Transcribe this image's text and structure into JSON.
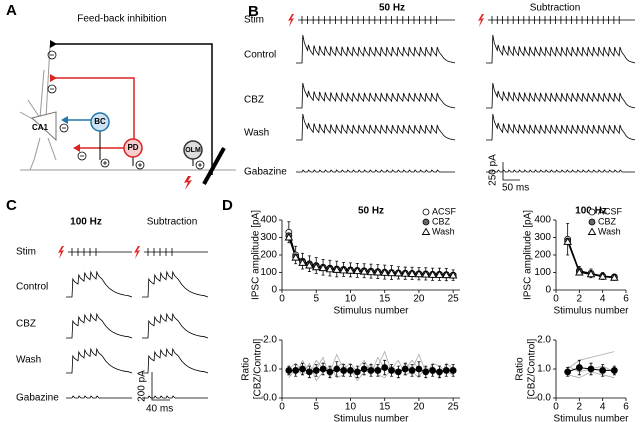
{
  "panel_a": {
    "label": "A",
    "title": "Feed-back inhibition",
    "cells": [
      "CA1",
      "BC",
      "PD",
      "OLM"
    ]
  },
  "panel_b": {
    "label": "B",
    "columns": [
      "50 Hz",
      "Subtraction"
    ],
    "rows": [
      "Stim",
      "Control",
      "CBZ",
      "Wash",
      "Gabazine"
    ],
    "scale_y": "250 pA",
    "scale_x": "50 ms"
  },
  "panel_c": {
    "label": "C",
    "columns": [
      "100 Hz",
      "Subtraction"
    ],
    "rows": [
      "Stim",
      "Control",
      "CBZ",
      "Wash",
      "Gabazine"
    ],
    "scale_y": "200 pA",
    "scale_x": "40 ms"
  },
  "panel_d": {
    "label": "D"
  },
  "chart_data": [
    {
      "type": "line",
      "title": "50 Hz",
      "xlabel": "Stimulus number",
      "ylabel": "IPSC amplitude [pA]",
      "x": [
        1,
        2,
        3,
        4,
        5,
        6,
        7,
        8,
        9,
        10,
        11,
        12,
        13,
        14,
        15,
        16,
        17,
        18,
        19,
        20,
        21,
        22,
        23,
        24,
        25
      ],
      "xlim": [
        0,
        26
      ],
      "xticks": [
        0,
        5,
        10,
        15,
        20,
        25
      ],
      "ylim": [
        0,
        400
      ],
      "yticks": [
        0,
        100,
        200,
        300,
        400
      ],
      "legend": "upper right",
      "series": [
        {
          "name": "ACSF",
          "marker": "circle-open",
          "color": "#000000",
          "values": [
            330,
            200,
            165,
            150,
            140,
            130,
            125,
            120,
            118,
            115,
            112,
            110,
            108,
            105,
            102,
            100,
            98,
            96,
            95,
            93,
            92,
            90,
            90,
            88,
            85
          ],
          "errors": [
            60,
            50,
            45,
            45,
            45,
            45,
            45,
            45,
            40,
            40,
            40,
            40,
            40,
            40,
            40,
            40,
            35,
            35,
            35,
            35,
            35,
            35,
            35,
            35,
            30
          ]
        },
        {
          "name": "CBZ",
          "marker": "circle-filled",
          "color": "#666666",
          "values": [
            310,
            190,
            160,
            145,
            135,
            128,
            122,
            118,
            115,
            112,
            110,
            108,
            105,
            103,
            100,
            98,
            96,
            95,
            93,
            92,
            90,
            88,
            88,
            86,
            84
          ]
        },
        {
          "name": "Wash",
          "marker": "triangle-open",
          "color": "#000000",
          "values": [
            300,
            185,
            155,
            140,
            130,
            125,
            118,
            115,
            112,
            110,
            108,
            105,
            102,
            100,
            98,
            96,
            95,
            93,
            92,
            90,
            88,
            87,
            86,
            85,
            83
          ]
        }
      ]
    },
    {
      "type": "line",
      "title": "100 Hz",
      "xlabel": "Stimulus number",
      "ylabel": "IPSC amplitude [pA]",
      "x": [
        1,
        2,
        3,
        4,
        5
      ],
      "xlim": [
        0,
        6
      ],
      "xticks": [
        0,
        2,
        4,
        6
      ],
      "ylim": [
        0,
        400
      ],
      "yticks": [
        0,
        100,
        200,
        300,
        400
      ],
      "legend": "upper right",
      "series": [
        {
          "name": "ACSF",
          "marker": "circle-open",
          "color": "#000000",
          "values": [
            290,
            110,
            95,
            80,
            75
          ],
          "errors": [
            90,
            25,
            25,
            20,
            15
          ]
        },
        {
          "name": "CBZ",
          "marker": "circle-filled",
          "color": "#666666",
          "values": [
            280,
            105,
            95,
            78,
            72
          ]
        },
        {
          "name": "Wash",
          "marker": "triangle-open",
          "color": "#000000",
          "values": [
            275,
            100,
            90,
            76,
            70
          ]
        }
      ]
    },
    {
      "type": "line",
      "xlabel": "Stimulus number",
      "ylabel": [
        "Ratio",
        "[CBZ/Control]"
      ],
      "x": [
        1,
        2,
        3,
        4,
        5,
        6,
        7,
        8,
        9,
        10,
        11,
        12,
        13,
        14,
        15,
        16,
        17,
        18,
        19,
        20,
        21,
        22,
        23,
        24,
        25
      ],
      "xlim": [
        0,
        26
      ],
      "xticks": [
        0,
        5,
        10,
        15,
        20,
        25
      ],
      "ylim": [
        0,
        2
      ],
      "yticks": [
        {
          "value": 0,
          "label": "0.0"
        },
        {
          "value": 1,
          "label": "1.0"
        },
        {
          "value": 2,
          "label": "2.0"
        }
      ],
      "series": [
        {
          "color": "#aaaaaa",
          "values": [
            1.1,
            0.8,
            1.3,
            0.9,
            1.0,
            1.4,
            0.7,
            1.1,
            1.2,
            0.8,
            1.0,
            1.3,
            0.9,
            1.1,
            1.6,
            0.9,
            0.8,
            1.2,
            1.0,
            1.5,
            0.9,
            1.1,
            0.7,
            1.2,
            1.0
          ]
        },
        {
          "color": "#aaaaaa",
          "values": [
            0.7,
            1.0,
            0.8,
            1.2,
            0.6,
            0.9,
            1.1,
            0.7,
            0.8,
            1.0,
            0.6,
            0.9,
            1.2,
            0.8,
            0.7,
            1.0,
            1.3,
            0.8,
            0.9,
            0.7,
            1.1,
            0.8,
            1.0,
            0.9,
            0.8
          ]
        },
        {
          "color": "#aaaaaa",
          "values": [
            1.0,
            1.2,
            0.9,
            0.8,
            1.3,
            1.0,
            0.9,
            1.5,
            1.0,
            1.2,
            0.9,
            1.0,
            0.8,
            1.4,
            1.0,
            1.1,
            0.9,
            1.0,
            1.3,
            1.0,
            0.8,
            1.2,
            1.1,
            0.9,
            1.1
          ]
        },
        {
          "marker": "circle-filled",
          "color": "#000000",
          "values": [
            0.95,
            0.95,
            1.0,
            0.9,
            0.95,
            1.0,
            0.9,
            1.0,
            0.95,
            0.95,
            0.9,
            1.0,
            0.95,
            0.95,
            1.05,
            0.95,
            0.9,
            1.0,
            0.95,
            1.0,
            0.9,
            0.95,
            0.9,
            0.95,
            0.95
          ],
          "errors": [
            0.15,
            0.2,
            0.2,
            0.2,
            0.2,
            0.2,
            0.2,
            0.25,
            0.2,
            0.2,
            0.2,
            0.2,
            0.2,
            0.2,
            0.25,
            0.2,
            0.2,
            0.2,
            0.2,
            0.25,
            0.2,
            0.2,
            0.2,
            0.2,
            0.2
          ]
        }
      ]
    },
    {
      "type": "line",
      "xlabel": "Stimulus number",
      "ylabel": [
        "Ratio",
        "[CBZ/Control]"
      ],
      "x": [
        1,
        2,
        3,
        4,
        5
      ],
      "xlim": [
        0,
        6
      ],
      "xticks": [
        0,
        2,
        4,
        6
      ],
      "ylim": [
        0,
        2
      ],
      "yticks": [
        {
          "value": 0,
          "label": "0.0"
        },
        {
          "value": 1,
          "label": "1.0"
        },
        {
          "value": 2,
          "label": "2.0"
        }
      ],
      "series": [
        {
          "color": "#aaaaaa",
          "values": [
            1.0,
            1.3,
            1.4,
            1.5,
            1.6
          ]
        },
        {
          "color": "#aaaaaa",
          "values": [
            0.8,
            0.7,
            0.9,
            0.8,
            0.7
          ]
        },
        {
          "color": "#aaaaaa",
          "values": [
            1.1,
            0.9,
            1.0,
            1.1,
            0.9
          ]
        },
        {
          "marker": "circle-filled",
          "color": "#000000",
          "values": [
            0.9,
            1.05,
            1.0,
            0.95,
            0.95
          ],
          "errors": [
            0.15,
            0.25,
            0.2,
            0.2,
            0.15
          ]
        }
      ]
    }
  ]
}
